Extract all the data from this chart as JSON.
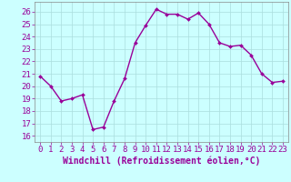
{
  "x": [
    0,
    1,
    2,
    3,
    4,
    5,
    6,
    7,
    8,
    9,
    10,
    11,
    12,
    13,
    14,
    15,
    16,
    17,
    18,
    19,
    20,
    21,
    22,
    23
  ],
  "y": [
    20.8,
    20.0,
    18.8,
    19.0,
    19.3,
    16.5,
    16.7,
    18.8,
    20.6,
    23.5,
    24.9,
    26.2,
    25.8,
    25.8,
    25.4,
    25.9,
    25.0,
    23.5,
    23.2,
    23.3,
    22.5,
    21.0,
    20.3,
    20.4
  ],
  "line_color": "#990099",
  "marker": "D",
  "marker_size": 2.0,
  "line_width": 1.0,
  "bg_color": "#ccffff",
  "grid_color": "#aadddd",
  "xlabel": "Windchill (Refroidissement éolien,°C)",
  "xlabel_color": "#990099",
  "xlabel_fontsize": 7,
  "ylabel_ticks": [
    16,
    17,
    18,
    19,
    20,
    21,
    22,
    23,
    24,
    25,
    26
  ],
  "xlim": [
    -0.5,
    23.5
  ],
  "ylim": [
    15.5,
    26.8
  ],
  "xtick_labels": [
    "0",
    "1",
    "2",
    "3",
    "4",
    "5",
    "6",
    "7",
    "8",
    "9",
    "10",
    "11",
    "12",
    "13",
    "14",
    "15",
    "16",
    "17",
    "18",
    "19",
    "20",
    "21",
    "22",
    "23"
  ],
  "tick_fontsize": 6.5,
  "tick_color": "#990099",
  "spine_color": "#888888"
}
